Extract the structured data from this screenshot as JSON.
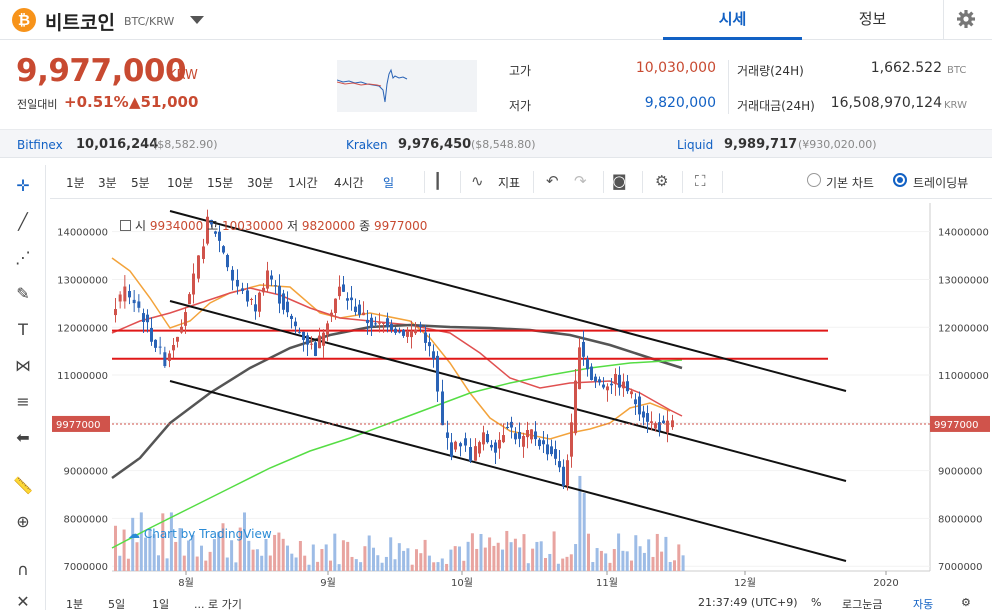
{
  "header": {
    "coin_icon": "₿",
    "coin_name": "비트코인",
    "pair": "BTC/KRW",
    "tabs": [
      "시세",
      "정보"
    ],
    "settings_icon": "gear-icon"
  },
  "ticker": {
    "price": "9,977,000",
    "unit": "KRW",
    "change_label": "전일대비",
    "change_pct": "+0.51%",
    "change_amt": "▲51,000",
    "high_label": "고가",
    "high": "10,030,000",
    "low_label": "저가",
    "low": "9,820,000",
    "volume_label": "거래량(24H)",
    "volume": "1,662.522",
    "volume_unit": "BTC",
    "value_label": "거래대금(24H)",
    "value": "16,508,970,124",
    "value_unit": "KRW"
  },
  "exchanges": [
    {
      "name": "Bitfinex",
      "price": "10,016,244",
      "sub": "($8,582.90)"
    },
    {
      "name": "Kraken",
      "price": "9,976,450",
      "sub": "($8,548.80)"
    },
    {
      "name": "Liquid",
      "price": "9,989,717",
      "sub": "(¥930,020.00)"
    }
  ],
  "toolbar": {
    "intervals": [
      "1분",
      "3분",
      "5분",
      "10분",
      "15분",
      "30분",
      "1시간",
      "4시간",
      "일"
    ],
    "active_interval": "일",
    "indicator_label": "지표",
    "basic_chart": "기본 차트",
    "trading_view": "트레이딩뷰"
  },
  "legend": {
    "open_label": "시",
    "open": "9934000",
    "high_label": "고",
    "high": "10030000",
    "low_label": "저",
    "low": "9820000",
    "close_label": "종",
    "close": "9977000"
  },
  "watermark": "Chart by TradingView",
  "bottom": {
    "ranges": [
      "1분",
      "5일",
      "1일"
    ],
    "goto": "... 로 가기",
    "time": "21:37:49 (UTC+9)",
    "pct": "%",
    "log": "로그눈금",
    "auto": "자동"
  },
  "chart_data": {
    "type": "candlestick",
    "y_ticks": [
      7000000,
      8000000,
      9000000,
      10000000,
      11000000,
      12000000,
      13000000,
      14000000
    ],
    "y_tick_labels": [
      "7000000",
      "8000000",
      "9000000",
      "10000000",
      "11000000",
      "12000000",
      "13000000",
      "14000000"
    ],
    "x_labels": [
      "8월",
      "9월",
      "10월",
      "11월",
      "12월",
      "2020"
    ],
    "last_price_label": "9977000",
    "ylim": [
      6900000,
      14600000
    ],
    "colors": {
      "up": "#d0534b",
      "down": "#2a63b6",
      "ma_short": "#f3a33b",
      "ma_mid": "#e05050",
      "ma_long": "#555555",
      "ma_xlong": "#55dd44",
      "support": "#e01818",
      "channel": "#111111"
    }
  }
}
